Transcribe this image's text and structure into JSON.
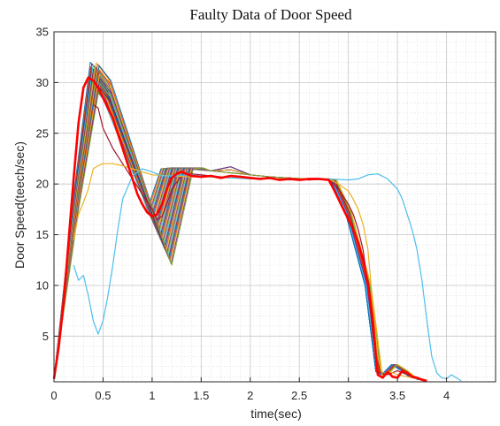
{
  "chart_data": {
    "type": "line",
    "title": "Faulty Data of Door Speed",
    "xlabel": "time(sec)",
    "ylabel": "Door Speed(teech/sec)",
    "xlim": [
      0,
      4.5
    ],
    "ylim": [
      0.5,
      35
    ],
    "xticks": [
      0,
      0.5,
      1,
      1.5,
      2,
      2.5,
      3,
      3.5,
      4
    ],
    "xtick_labels": [
      "0",
      "0.5",
      "1",
      "1.5",
      "2",
      "2.5",
      "3",
      "3.5",
      "4"
    ],
    "yticks": [
      5,
      10,
      15,
      20,
      25,
      30,
      35
    ],
    "ytick_labels": [
      "5",
      "10",
      "15",
      "20",
      "25",
      "30",
      "35"
    ],
    "grid": "major and minor",
    "legend": "none",
    "bundle": {
      "description_count": 40,
      "peak_time_range": [
        0.37,
        0.47
      ],
      "peak_value_range": [
        29.5,
        32
      ],
      "dip_time_range": [
        0.95,
        1.2
      ],
      "dip_value_range": [
        12,
        17.5
      ],
      "plateau": 20.7,
      "colors": [
        "#0072bd",
        "#d95319",
        "#edb120",
        "#7e2f8e",
        "#77ac30",
        "#4dbeee",
        "#a2142f"
      ]
    },
    "series": [
      {
        "color": "#ff0000",
        "x": [
          0,
          0.05,
          0.1,
          0.15,
          0.2,
          0.25,
          0.3,
          0.35,
          0.4,
          0.45,
          0.5,
          0.55,
          0.6,
          0.65,
          0.7,
          0.75,
          0.8,
          0.85,
          0.9,
          0.95,
          1.0,
          1.05,
          1.1,
          1.15,
          1.2,
          1.25,
          1.3,
          1.35,
          1.4,
          1.5,
          1.6,
          1.7,
          1.8,
          1.9,
          2.0,
          2.1,
          2.2,
          2.3,
          2.4,
          2.5,
          2.6,
          2.7,
          2.8,
          2.85,
          2.9,
          2.95,
          3.0,
          3.05,
          3.1,
          3.15,
          3.2,
          3.25,
          3.28,
          3.3,
          3.35,
          3.4,
          3.45,
          3.5,
          3.55,
          3.6,
          3.65,
          3.7,
          3.75,
          3.8
        ],
        "y": [
          0.8,
          4,
          8.5,
          14.5,
          20.5,
          26,
          29.5,
          30.5,
          30.2,
          29.5,
          28.5,
          27.5,
          26.5,
          25,
          23.5,
          22,
          20.5,
          19,
          18,
          17.2,
          16.8,
          17,
          18,
          19.5,
          20.6,
          21,
          21.2,
          21,
          20.8,
          20.7,
          20.8,
          20.6,
          20.8,
          20.7,
          20.6,
          20.5,
          20.6,
          20.4,
          20.5,
          20.4,
          20.5,
          20.5,
          20.4,
          19.5,
          18.5,
          17.5,
          16.5,
          15.5,
          14.2,
          12.5,
          10.2,
          6.5,
          3,
          1.2,
          0.9,
          1.5,
          1.0,
          0.9,
          1.6,
          1.4,
          1.0,
          0.9,
          0.7,
          0.6
        ]
      },
      {
        "color": "#4dbeee",
        "x": [
          0.2,
          0.25,
          0.3,
          0.35,
          0.4,
          0.45,
          0.5,
          0.55,
          0.6,
          0.65,
          0.7,
          0.8,
          0.9,
          1.0,
          1.1,
          1.2,
          1.4,
          1.6,
          1.8,
          2.0,
          2.2,
          2.4,
          2.6,
          2.8,
          3.0,
          3.1,
          3.2,
          3.3,
          3.4,
          3.5,
          3.55,
          3.6,
          3.65,
          3.7,
          3.75,
          3.8,
          3.85,
          3.9,
          3.95,
          4.0,
          4.05,
          4.1,
          4.15
        ],
        "y": [
          12,
          10.5,
          11,
          9,
          6.5,
          5.2,
          6.5,
          9,
          12,
          15.5,
          18.5,
          20.8,
          21.5,
          21.2,
          20.8,
          20.8,
          20.9,
          20.7,
          20.6,
          20.5,
          20.5,
          20.4,
          20.5,
          20.5,
          20.4,
          20.5,
          20.9,
          21,
          20.5,
          19.5,
          18.5,
          17,
          15.5,
          13.5,
          10.5,
          6.5,
          3,
          1.4,
          0.9,
          0.8,
          1.2,
          0.9,
          0.6
        ]
      },
      {
        "color": "#edb120",
        "x": [
          0.2,
          0.25,
          0.3,
          0.35,
          0.4,
          0.45,
          0.5,
          0.55,
          0.6,
          0.7,
          0.8,
          0.9,
          1.0,
          1.2,
          1.4,
          1.6,
          1.8,
          2.0,
          2.2,
          2.4,
          2.6,
          2.8,
          2.9,
          3.0,
          3.05,
          3.1,
          3.15,
          3.2,
          3.25,
          3.3,
          3.35,
          3.4,
          3.5,
          3.6,
          3.7
        ],
        "y": [
          14.5,
          17,
          18.2,
          19.5,
          21.5,
          21.8,
          22,
          22,
          22,
          21.8,
          21.5,
          21.2,
          20.9,
          20.8,
          20.7,
          20.7,
          20.6,
          20.6,
          20.5,
          20.5,
          20.5,
          20.5,
          20,
          19.3,
          18.5,
          17.5,
          16,
          13.5,
          8,
          3,
          1.0,
          1.6,
          1.2,
          1.0,
          0.8
        ]
      },
      {
        "color": "#a2142f",
        "x": [
          0.4,
          0.45,
          0.5,
          0.55,
          0.6,
          0.7,
          0.8,
          0.9,
          1.0,
          1.05,
          1.1,
          1.15,
          1.2,
          1.3,
          1.4,
          1.6,
          1.8,
          2.0,
          2.2,
          2.4,
          2.6,
          2.8,
          2.9,
          3.0,
          3.05,
          3.1,
          3.15,
          3.2,
          3.25,
          3.3,
          3.35,
          3.4,
          3.5,
          3.6,
          3.7
        ],
        "y": [
          27.8,
          27.5,
          25.5,
          24.5,
          23.5,
          22,
          20.5,
          19,
          17.5,
          16.5,
          16.8,
          18,
          19.5,
          20.8,
          21,
          20.8,
          20.6,
          20.6,
          20.5,
          20.5,
          20.4,
          20.5,
          19.5,
          18,
          17,
          15.5,
          13.5,
          10,
          5,
          1.5,
          1.3,
          1.2,
          1.6,
          1.2,
          0.8
        ]
      }
    ]
  }
}
